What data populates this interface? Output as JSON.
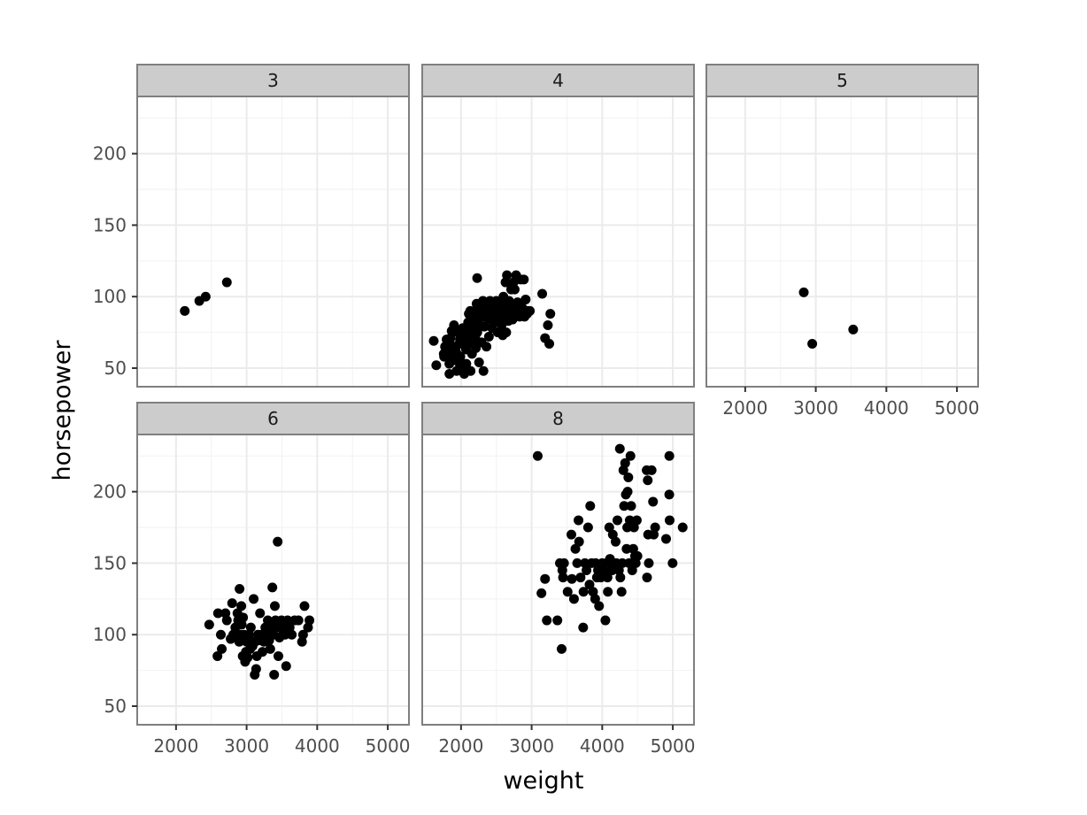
{
  "chart_data": {
    "type": "scatter",
    "xlabel": "weight",
    "ylabel": "horsepower",
    "xlim": [
      1450,
      5300
    ],
    "ylim": [
      37,
      240
    ],
    "x_ticks": [
      2000,
      3000,
      4000,
      5000
    ],
    "y_ticks": [
      50,
      100,
      150,
      200
    ],
    "grid": true,
    "legend": "none",
    "point_color": "#000000",
    "panels": [
      {
        "label": "3",
        "points": [
          [
            2124,
            90
          ],
          [
            2330,
            97
          ],
          [
            2420,
            100
          ],
          [
            2720,
            110
          ]
        ]
      },
      {
        "label": "4",
        "points": [
          [
            1613,
            69
          ],
          [
            1649,
            52
          ],
          [
            1755,
            60
          ],
          [
            1760,
            58
          ],
          [
            1773,
            65
          ],
          [
            1795,
            70
          ],
          [
            1800,
            61
          ],
          [
            1825,
            58
          ],
          [
            1834,
            53
          ],
          [
            1835,
            46
          ],
          [
            1845,
            67
          ],
          [
            1850,
            71
          ],
          [
            1867,
            76
          ],
          [
            1875,
            63
          ],
          [
            1900,
            80
          ],
          [
            1915,
            56
          ],
          [
            1925,
            62
          ],
          [
            1937,
            48
          ],
          [
            1940,
            60
          ],
          [
            1950,
            76
          ],
          [
            1955,
            75
          ],
          [
            1965,
            54
          ],
          [
            1975,
            67
          ],
          [
            1980,
            49
          ],
          [
            1985,
            70
          ],
          [
            1990,
            58
          ],
          [
            2000,
            74
          ],
          [
            2020,
            48
          ],
          [
            2025,
            78
          ],
          [
            2035,
            70
          ],
          [
            2045,
            46
          ],
          [
            2050,
            66
          ],
          [
            2065,
            72
          ],
          [
            2070,
            63
          ],
          [
            2075,
            53
          ],
          [
            2100,
            82
          ],
          [
            2110,
            88
          ],
          [
            2120,
            67
          ],
          [
            2125,
            75
          ],
          [
            2130,
            90
          ],
          [
            2135,
            48
          ],
          [
            2145,
            78
          ],
          [
            2155,
            60
          ],
          [
            2160,
            86
          ],
          [
            2175,
            69
          ],
          [
            2190,
            80
          ],
          [
            2200,
            72
          ],
          [
            2205,
            90
          ],
          [
            2210,
            64
          ],
          [
            2215,
            84
          ],
          [
            2220,
            95
          ],
          [
            2228,
            113
          ],
          [
            2230,
            75
          ],
          [
            2245,
            88
          ],
          [
            2255,
            54
          ],
          [
            2265,
            80
          ],
          [
            2278,
            92
          ],
          [
            2290,
            68
          ],
          [
            2300,
            86
          ],
          [
            2310,
            97
          ],
          [
            2318,
            48
          ],
          [
            2330,
            79
          ],
          [
            2345,
            90
          ],
          [
            2360,
            65
          ],
          [
            2370,
            95
          ],
          [
            2380,
            84
          ],
          [
            2395,
            72
          ],
          [
            2400,
            88
          ],
          [
            2410,
            97
          ],
          [
            2425,
            92
          ],
          [
            2440,
            78
          ],
          [
            2450,
            86
          ],
          [
            2460,
            95
          ],
          [
            2475,
            82
          ],
          [
            2490,
            90
          ],
          [
            2500,
            97
          ],
          [
            2510,
            88
          ],
          [
            2520,
            75
          ],
          [
            2530,
            84
          ],
          [
            2545,
            92
          ],
          [
            2560,
            95
          ],
          [
            2575,
            80
          ],
          [
            2580,
            88
          ],
          [
            2590,
            73
          ],
          [
            2600,
            100
          ],
          [
            2610,
            95
          ],
          [
            2620,
            86
          ],
          [
            2630,
            110
          ],
          [
            2640,
            75
          ],
          [
            2650,
            115
          ],
          [
            2660,
            92
          ],
          [
            2670,
            83
          ],
          [
            2680,
            97
          ],
          [
            2700,
            88
          ],
          [
            2710,
            105
          ],
          [
            2730,
            84
          ],
          [
            2745,
            110
          ],
          [
            2760,
            105
          ],
          [
            2770,
            92
          ],
          [
            2780,
            115
          ],
          [
            2800,
            96
          ],
          [
            2815,
            88
          ],
          [
            2830,
            86
          ],
          [
            2845,
            112
          ],
          [
            2870,
            92
          ],
          [
            2890,
            112
          ],
          [
            2900,
            86
          ],
          [
            2915,
            98
          ],
          [
            2935,
            88
          ],
          [
            2950,
            90
          ],
          [
            2975,
            90
          ],
          [
            3150,
            102
          ],
          [
            3190,
            71
          ],
          [
            3230,
            80
          ],
          [
            3250,
            67
          ],
          [
            3265,
            88
          ]
        ]
      },
      {
        "label": "5",
        "points": [
          [
            2830,
            103
          ],
          [
            2950,
            67
          ],
          [
            3530,
            77
          ]
        ]
      },
      {
        "label": "6",
        "points": [
          [
            2470,
            107
          ],
          [
            2587,
            85
          ],
          [
            2595,
            115
          ],
          [
            2635,
            100
          ],
          [
            2648,
            90
          ],
          [
            2700,
            115
          ],
          [
            2720,
            110
          ],
          [
            2774,
            97
          ],
          [
            2795,
            122
          ],
          [
            2810,
            100
          ],
          [
            2840,
            105
          ],
          [
            2855,
            98
          ],
          [
            2870,
            115
          ],
          [
            2880,
            110
          ],
          [
            2895,
            95
          ],
          [
            2900,
            132
          ],
          [
            2910,
            100
          ],
          [
            2925,
            120
          ],
          [
            2930,
            107
          ],
          [
            2945,
            85
          ],
          [
            2950,
            112
          ],
          [
            2965,
            100
          ],
          [
            2979,
            81
          ],
          [
            2990,
            88
          ],
          [
            3000,
            95
          ],
          [
            3015,
            84
          ],
          [
            3035,
            100
          ],
          [
            3050,
            90
          ],
          [
            3060,
            105
          ],
          [
            3085,
            92
          ],
          [
            3100,
            125
          ],
          [
            3115,
            72
          ],
          [
            3120,
            95
          ],
          [
            3135,
            76
          ],
          [
            3145,
            85
          ],
          [
            3160,
            100
          ],
          [
            3180,
            96
          ],
          [
            3190,
            115
          ],
          [
            3210,
            100
          ],
          [
            3225,
            88
          ],
          [
            3245,
            95
          ],
          [
            3265,
            105
          ],
          [
            3280,
            100
          ],
          [
            3300,
            110
          ],
          [
            3320,
            96
          ],
          [
            3335,
            90
          ],
          [
            3350,
            105
          ],
          [
            3365,
            133
          ],
          [
            3380,
            100
          ],
          [
            3390,
            72
          ],
          [
            3400,
            120
          ],
          [
            3410,
            110
          ],
          [
            3425,
            105
          ],
          [
            3440,
            165
          ],
          [
            3450,
            85
          ],
          [
            3465,
            98
          ],
          [
            3480,
            105
          ],
          [
            3495,
            110
          ],
          [
            3510,
            100
          ],
          [
            3530,
            105
          ],
          [
            3545,
            100
          ],
          [
            3560,
            78
          ],
          [
            3580,
            110
          ],
          [
            3610,
            105
          ],
          [
            3640,
            100
          ],
          [
            3680,
            110
          ],
          [
            3735,
            110
          ],
          [
            3785,
            95
          ],
          [
            3800,
            100
          ],
          [
            3820,
            120
          ],
          [
            3870,
            105
          ],
          [
            3890,
            110
          ]
        ]
      },
      {
        "label": "8",
        "points": [
          [
            3086,
            225
          ],
          [
            3139,
            129
          ],
          [
            3190,
            139
          ],
          [
            3215,
            110
          ],
          [
            3365,
            110
          ],
          [
            3400,
            150
          ],
          [
            3425,
            90
          ],
          [
            3435,
            145
          ],
          [
            3445,
            140
          ],
          [
            3459,
            150
          ],
          [
            3510,
            130
          ],
          [
            3563,
            170
          ],
          [
            3570,
            139
          ],
          [
            3600,
            125
          ],
          [
            3620,
            160
          ],
          [
            3645,
            150
          ],
          [
            3664,
            180
          ],
          [
            3672,
            165
          ],
          [
            3693,
            140
          ],
          [
            3730,
            105
          ],
          [
            3735,
            130
          ],
          [
            3755,
            150
          ],
          [
            3777,
            145
          ],
          [
            3800,
            175
          ],
          [
            3820,
            135
          ],
          [
            3830,
            190
          ],
          [
            3850,
            150
          ],
          [
            3870,
            130
          ],
          [
            3900,
            125
          ],
          [
            3907,
            150
          ],
          [
            3925,
            140
          ],
          [
            3940,
            145
          ],
          [
            3955,
            120
          ],
          [
            3980,
            140
          ],
          [
            4000,
            150
          ],
          [
            4020,
            145
          ],
          [
            4045,
            110
          ],
          [
            4060,
            150
          ],
          [
            4075,
            140
          ],
          [
            4080,
            130
          ],
          [
            4100,
            175
          ],
          [
            4110,
            153
          ],
          [
            4129,
            150
          ],
          [
            4140,
            145
          ],
          [
            4150,
            170
          ],
          [
            4190,
            165
          ],
          [
            4200,
            150
          ],
          [
            4215,
            180
          ],
          [
            4237,
            145
          ],
          [
            4250,
            230
          ],
          [
            4257,
            140
          ],
          [
            4274,
            130
          ],
          [
            4285,
            150
          ],
          [
            4300,
            215
          ],
          [
            4310,
            190
          ],
          [
            4325,
            220
          ],
          [
            4335,
            198
          ],
          [
            4345,
            160
          ],
          [
            4354,
            175
          ],
          [
            4360,
            200
          ],
          [
            4370,
            210
          ],
          [
            4380,
            150
          ],
          [
            4390,
            180
          ],
          [
            4400,
            225
          ],
          [
            4410,
            190
          ],
          [
            4425,
            145
          ],
          [
            4440,
            160
          ],
          [
            4450,
            175
          ],
          [
            4457,
            150
          ],
          [
            4465,
            155
          ],
          [
            4475,
            150
          ],
          [
            4490,
            180
          ],
          [
            4499,
            155
          ],
          [
            4630,
            215
          ],
          [
            4635,
            140
          ],
          [
            4645,
            208
          ],
          [
            4650,
            170
          ],
          [
            4660,
            150
          ],
          [
            4700,
            215
          ],
          [
            4720,
            193
          ],
          [
            4730,
            170
          ],
          [
            4750,
            175
          ],
          [
            4905,
            167
          ],
          [
            4950,
            198
          ],
          [
            4951,
            225
          ],
          [
            4955,
            180
          ],
          [
            4997,
            150
          ],
          [
            5140,
            175
          ]
        ]
      }
    ]
  }
}
